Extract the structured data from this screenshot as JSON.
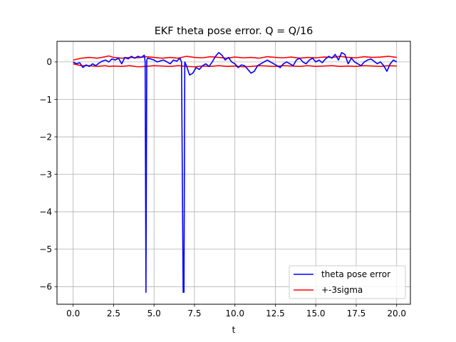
{
  "chart_data": {
    "type": "line",
    "title": "EKF theta pose error. Q = Q/16",
    "xlabel": "t",
    "ylabel": "",
    "xlim": [
      -1.0,
      20.85
    ],
    "ylim": [
      -6.47,
      0.55
    ],
    "xticks": [
      0.0,
      2.5,
      5.0,
      7.5,
      10.0,
      12.5,
      15.0,
      17.5,
      20.0
    ],
    "xtick_labels": [
      "0.0",
      "2.5",
      "5.0",
      "7.5",
      "10.0",
      "12.5",
      "15.0",
      "17.5",
      "20.0"
    ],
    "yticks": [
      0,
      -1,
      -2,
      -3,
      -4,
      -5,
      -6
    ],
    "ytick_labels": [
      "0",
      "−1",
      "−2",
      "−3",
      "−4",
      "−5",
      "−6"
    ],
    "grid": true,
    "legend_position": "lower-right",
    "series": [
      {
        "name": "theta pose error",
        "color": "#0000ff",
        "x": [
          0.0,
          0.2,
          0.4,
          0.6,
          0.8,
          1.0,
          1.2,
          1.4,
          1.6,
          1.8,
          2.0,
          2.2,
          2.4,
          2.6,
          2.8,
          3.0,
          3.2,
          3.4,
          3.6,
          3.8,
          4.0,
          4.2,
          4.4,
          4.45,
          4.5,
          4.55,
          4.6,
          4.8,
          5.0,
          5.2,
          5.4,
          5.6,
          5.8,
          6.0,
          6.2,
          6.4,
          6.6,
          6.7,
          6.8,
          6.85,
          6.9,
          7.0,
          7.2,
          7.4,
          7.6,
          7.8,
          8.0,
          8.2,
          8.4,
          8.6,
          8.8,
          9.0,
          9.2,
          9.4,
          9.6,
          9.8,
          10.0,
          10.2,
          10.4,
          10.6,
          10.8,
          11.0,
          11.2,
          11.4,
          11.6,
          11.8,
          12.0,
          12.2,
          12.4,
          12.6,
          12.8,
          13.0,
          13.2,
          13.4,
          13.6,
          13.8,
          14.0,
          14.2,
          14.4,
          14.6,
          14.8,
          15.0,
          15.2,
          15.4,
          15.6,
          15.8,
          16.0,
          16.2,
          16.4,
          16.6,
          16.8,
          17.0,
          17.2,
          17.4,
          17.6,
          17.8,
          18.0,
          18.2,
          18.4,
          18.6,
          18.8,
          19.0,
          19.2,
          19.4,
          19.6,
          19.8,
          20.0
        ],
        "y": [
          0.0,
          -0.05,
          -0.02,
          -0.15,
          -0.08,
          -0.12,
          -0.05,
          -0.1,
          -0.03,
          0.02,
          0.05,
          0.0,
          0.08,
          0.05,
          0.1,
          -0.05,
          0.12,
          0.08,
          0.15,
          0.1,
          0.15,
          0.12,
          0.18,
          0.0,
          -6.15,
          0.05,
          0.1,
          0.08,
          0.05,
          0.0,
          0.03,
          0.05,
          0.0,
          -0.05,
          0.05,
          0.02,
          0.1,
          0.0,
          -6.15,
          -6.15,
          0.0,
          -0.1,
          -0.35,
          -0.3,
          -0.15,
          -0.2,
          -0.1,
          -0.05,
          -0.12,
          0.0,
          0.15,
          0.25,
          0.18,
          0.05,
          0.12,
          0.0,
          -0.05,
          -0.15,
          -0.08,
          -0.1,
          -0.2,
          -0.3,
          -0.25,
          -0.1,
          -0.05,
          0.0,
          0.05,
          0.0,
          -0.05,
          -0.1,
          -0.15,
          -0.05,
          0.0,
          -0.05,
          -0.1,
          0.05,
          0.1,
          0.0,
          -0.05,
          0.05,
          0.1,
          0.0,
          0.05,
          -0.02,
          0.08,
          0.15,
          0.1,
          0.2,
          0.05,
          0.25,
          0.2,
          -0.05,
          0.1,
          0.0,
          -0.05,
          -0.1,
          0.0,
          0.05,
          0.08,
          0.02,
          -0.05,
          0.0,
          -0.1,
          -0.25,
          -0.05,
          0.05,
          0.0
        ],
        "name_in_legend": true
      },
      {
        "name": "+-3sigma",
        "color": "#ff0000",
        "x": [
          0.0,
          0.5,
          1.0,
          1.5,
          2.0,
          2.2,
          2.5,
          3.0,
          3.5,
          4.0,
          4.5,
          5.0,
          5.5,
          6.0,
          6.5,
          7.0,
          7.5,
          8.0,
          8.5,
          9.0,
          9.5,
          10.0,
          10.5,
          11.0,
          11.5,
          12.0,
          12.5,
          13.0,
          13.5,
          14.0,
          14.5,
          15.0,
          15.5,
          16.0,
          16.5,
          17.0,
          17.5,
          18.0,
          18.5,
          19.0,
          19.5,
          20.0
        ],
        "y": [
          0.05,
          0.1,
          0.12,
          0.1,
          0.14,
          0.16,
          0.12,
          0.1,
          0.12,
          0.11,
          0.14,
          0.12,
          0.1,
          0.12,
          0.1,
          0.15,
          0.12,
          0.11,
          0.14,
          0.12,
          0.1,
          0.13,
          0.11,
          0.12,
          0.1,
          0.14,
          0.12,
          0.11,
          0.13,
          0.1,
          0.12,
          0.11,
          0.13,
          0.12,
          0.15,
          0.12,
          0.11,
          0.14,
          0.12,
          0.13,
          0.15,
          0.12
        ],
        "y_lower": [
          -0.05,
          -0.1,
          -0.1,
          -0.12,
          -0.1,
          -0.12,
          -0.11,
          -0.12,
          -0.1,
          -0.13,
          -0.12,
          -0.1,
          -0.11,
          -0.12,
          -0.1,
          -0.12,
          -0.13,
          -0.11,
          -0.12,
          -0.1,
          -0.12,
          -0.11,
          -0.13,
          -0.12,
          -0.1,
          -0.11,
          -0.12,
          -0.1,
          -0.11,
          -0.12,
          -0.1,
          -0.12,
          -0.11,
          -0.1,
          -0.12,
          -0.11,
          -0.12,
          -0.1,
          -0.11,
          -0.12,
          -0.1,
          -0.11
        ]
      }
    ],
    "legend": [
      "theta pose error",
      "+-3sigma"
    ]
  }
}
